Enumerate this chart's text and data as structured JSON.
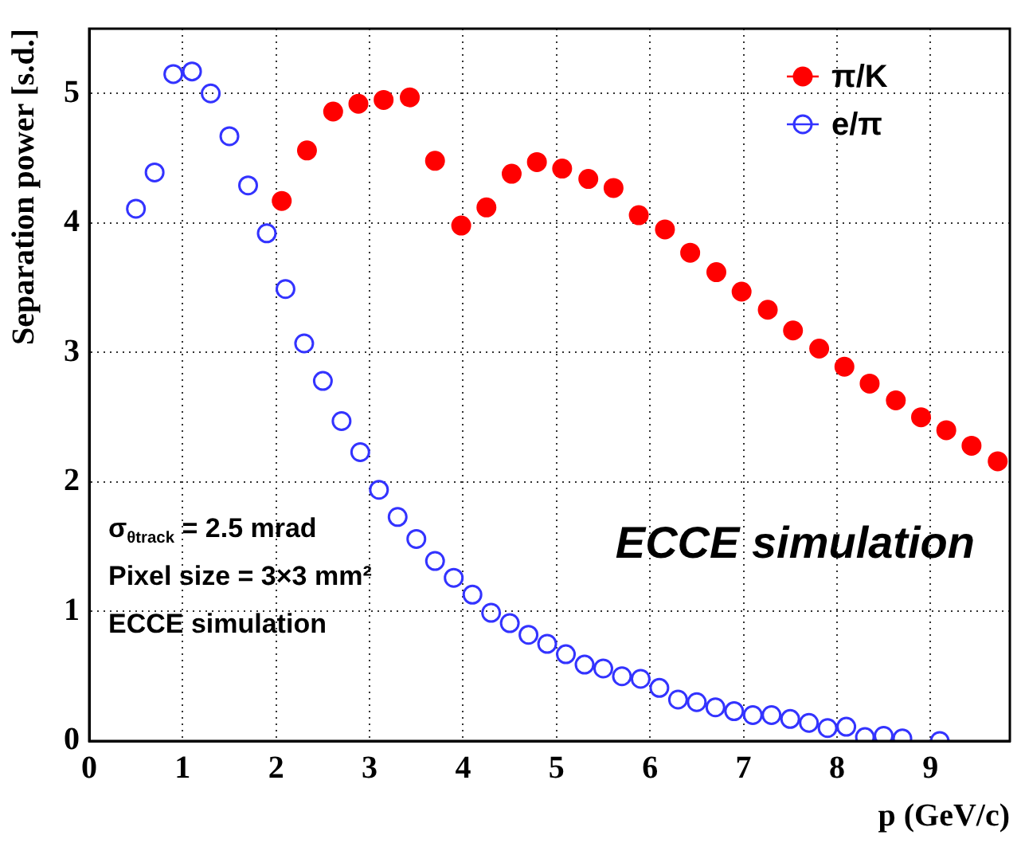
{
  "chart_data": {
    "type": "scatter",
    "xlabel": "p (GeV/c)",
    "ylabel": "Separation power [s.d.]",
    "xlim": [
      0,
      9.85
    ],
    "ylim": [
      0,
      5.5
    ],
    "xticks": [
      0,
      1,
      2,
      3,
      4,
      5,
      6,
      7,
      8,
      9
    ],
    "yticks": [
      0,
      1,
      2,
      3,
      4,
      5
    ],
    "grid": true,
    "legend": "top right",
    "series": [
      {
        "name": "π/K",
        "color": "#ff0000",
        "marker": "circle",
        "x": [
          2.06,
          2.33,
          2.61,
          2.88,
          3.15,
          3.43,
          3.7,
          3.98,
          4.25,
          4.52,
          4.79,
          5.06,
          5.34,
          5.61,
          5.88,
          6.16,
          6.43,
          6.71,
          6.98,
          7.26,
          7.53,
          7.81,
          8.08,
          8.35,
          8.63,
          8.9,
          9.17,
          9.44,
          9.72
        ],
        "values": [
          4.17,
          4.56,
          4.86,
          4.92,
          4.95,
          4.97,
          4.48,
          3.98,
          4.12,
          4.38,
          4.47,
          4.42,
          4.34,
          4.27,
          4.06,
          3.95,
          3.77,
          3.62,
          3.47,
          3.33,
          3.17,
          3.03,
          2.89,
          2.76,
          2.63,
          2.5,
          2.4,
          2.28,
          2.16
        ]
      },
      {
        "name": "e/π",
        "color": "#3333ff",
        "marker": "open circle",
        "x": [
          0.5,
          0.7,
          0.9,
          1.1,
          1.3,
          1.5,
          1.7,
          1.9,
          2.1,
          2.3,
          2.5,
          2.7,
          2.9,
          3.1,
          3.3,
          3.5,
          3.7,
          3.9,
          4.1,
          4.3,
          4.5,
          4.7,
          4.9,
          5.1,
          5.3,
          5.5,
          5.7,
          5.9,
          6.1,
          6.3,
          6.5,
          6.7,
          6.9,
          7.1,
          7.3,
          7.5,
          7.7,
          7.9,
          8.1,
          8.3,
          8.5,
          8.7,
          9.1
        ],
        "values": [
          4.11,
          4.39,
          5.15,
          5.17,
          5.0,
          4.67,
          4.29,
          3.92,
          3.49,
          3.07,
          2.78,
          2.47,
          2.23,
          1.94,
          1.73,
          1.56,
          1.39,
          1.26,
          1.13,
          0.99,
          0.91,
          0.82,
          0.75,
          0.67,
          0.59,
          0.56,
          0.5,
          0.48,
          0.41,
          0.32,
          0.3,
          0.26,
          0.23,
          0.2,
          0.2,
          0.17,
          0.14,
          0.1,
          0.11,
          0.03,
          0.04,
          0.02,
          0.0
        ]
      }
    ],
    "annotations": [
      "ECCE simulation",
      "σ$_{θ}$$_{track}$ = 2.5 mrad",
      "Pixel size = 3×3 mm²",
      "ECCE simulation"
    ]
  }
}
